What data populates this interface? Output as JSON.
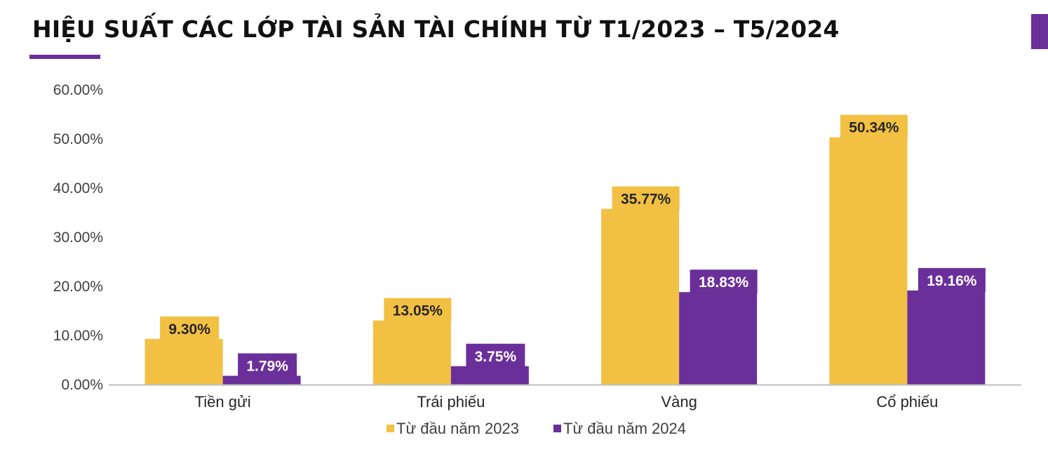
{
  "title": "HIỆU SUẤT CÁC LỚP TÀI SẢN TÀI CHÍNH TỪ T1/2023 – T5/2024",
  "colors": {
    "accent": "#6b2f9a"
  },
  "chart_data": {
    "type": "bar",
    "categories": [
      "Tiền gửi",
      "Trái phiếu",
      "Vàng",
      "Cổ phiếu"
    ],
    "series": [
      {
        "name": "Từ đầu năm 2023",
        "values": [
          9.3,
          13.05,
          35.77,
          50.34
        ],
        "labels": [
          "9.30%",
          "13.05%",
          "35.77%",
          "50.34%"
        ],
        "color": "#f2c043"
      },
      {
        "name": "Từ đầu năm 2024",
        "values": [
          1.79,
          3.75,
          18.83,
          19.16
        ],
        "labels": [
          "1.79%",
          "3.75%",
          "18.83%",
          "19.16%"
        ],
        "color": "#6b2f9a"
      }
    ],
    "ylim": [
      0,
      60
    ],
    "yticks": [
      0,
      10,
      20,
      30,
      40,
      50,
      60
    ],
    "ytick_labels": [
      "0.00%",
      "10.00%",
      "20.00%",
      "30.00%",
      "40.00%",
      "50.00%",
      "60.00%"
    ],
    "legend_position": "bottom-center",
    "grid": false
  }
}
